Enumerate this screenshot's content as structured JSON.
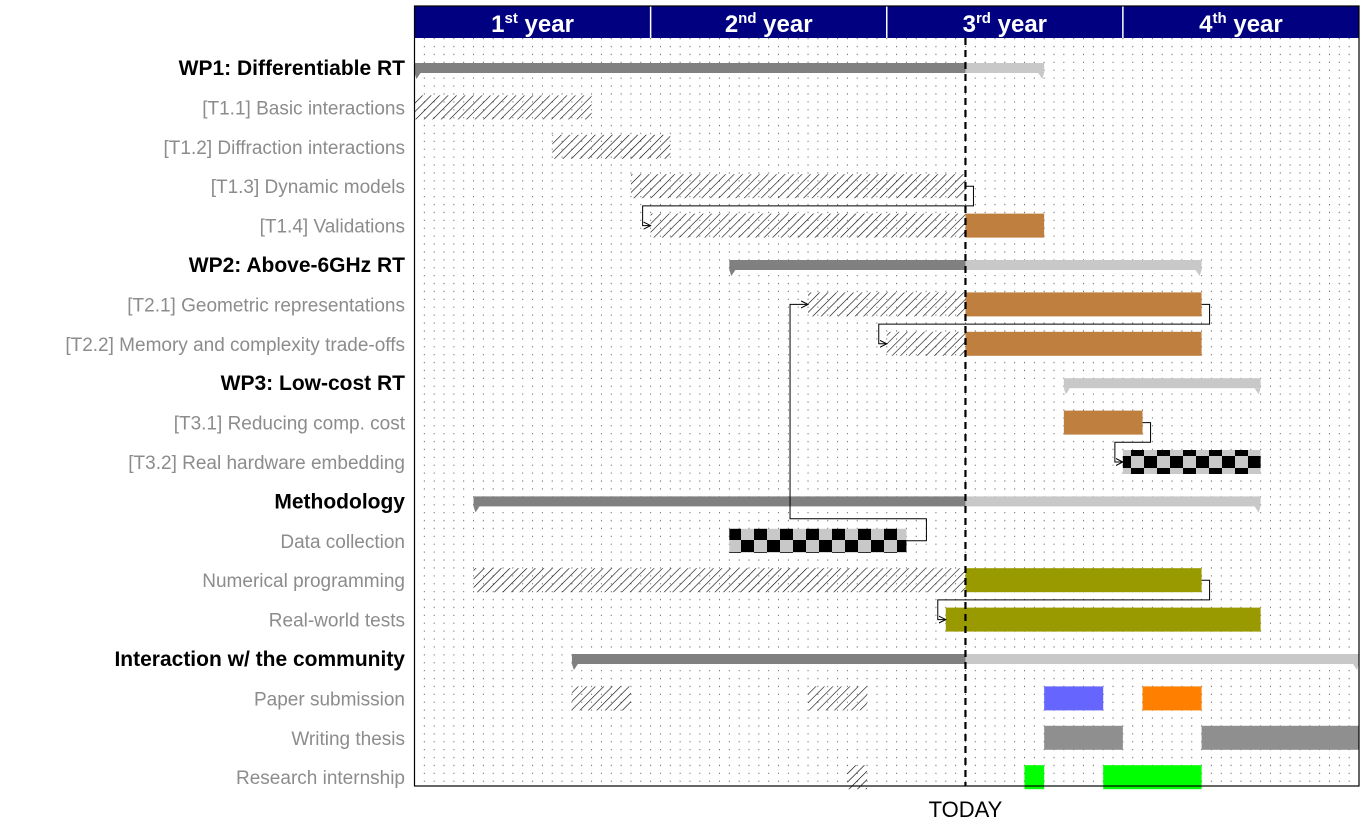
{
  "chart_data": {
    "type": "gantt",
    "time_unit": "month",
    "x_range": [
      0,
      48
    ],
    "years": [
      {
        "num": "1",
        "sup": "st",
        "word": "year",
        "start": 0,
        "end": 12
      },
      {
        "num": "2",
        "sup": "nd",
        "word": "year",
        "start": 12,
        "end": 24
      },
      {
        "num": "3",
        "sup": "rd",
        "word": "year",
        "start": 24,
        "end": 36
      },
      {
        "num": "4",
        "sup": "th",
        "word": "year",
        "start": 36,
        "end": 48
      }
    ],
    "today": {
      "label": "TODAY",
      "month": 28
    },
    "colors": {
      "header": "#000080",
      "group_done": "#808080",
      "group_planned": "#c8c8c8",
      "brown": "#bf7f3f",
      "olive": "#999900",
      "gray": "#8f8f8f",
      "blue": "#6666ff",
      "orange": "#ff7f00",
      "green": "#00ff00",
      "frame": "#000000"
    },
    "rows": [
      {
        "label": "WP1: Differentiable RT",
        "kind": "group",
        "bars": [
          {
            "start": 0,
            "end": 28,
            "style": "group_done"
          },
          {
            "start": 28,
            "end": 32,
            "style": "group_planned"
          }
        ]
      },
      {
        "label": "[T1.1] Basic interactions",
        "kind": "task",
        "bars": [
          {
            "start": 0,
            "end": 9,
            "style": "hatch"
          }
        ]
      },
      {
        "label": "[T1.2] Diffraction interactions",
        "kind": "task",
        "bars": [
          {
            "start": 7,
            "end": 13,
            "style": "hatch"
          }
        ]
      },
      {
        "label": "[T1.3] Dynamic models",
        "kind": "task",
        "bars": [
          {
            "start": 11,
            "end": 28,
            "style": "hatch"
          }
        ]
      },
      {
        "label": "[T1.4] Validations",
        "kind": "task",
        "bars": [
          {
            "start": 12,
            "end": 28,
            "style": "hatch"
          },
          {
            "start": 28,
            "end": 32,
            "style": "brown"
          }
        ]
      },
      {
        "label": "WP2: Above-6GHz RT",
        "kind": "group",
        "bars": [
          {
            "start": 16,
            "end": 28,
            "style": "group_done"
          },
          {
            "start": 28,
            "end": 40,
            "style": "group_planned"
          }
        ]
      },
      {
        "label": "[T2.1] Geometric representations",
        "kind": "task",
        "bars": [
          {
            "start": 20,
            "end": 28,
            "style": "hatch"
          },
          {
            "start": 28,
            "end": 40,
            "style": "brown"
          }
        ]
      },
      {
        "label": "[T2.2] Memory and complexity trade-offs",
        "kind": "task",
        "bars": [
          {
            "start": 24,
            "end": 28,
            "style": "hatch"
          },
          {
            "start": 28,
            "end": 40,
            "style": "brown"
          }
        ]
      },
      {
        "label": "WP3: Low-cost RT",
        "kind": "group",
        "bars": [
          {
            "start": 33,
            "end": 43,
            "style": "group_planned"
          }
        ]
      },
      {
        "label": "[T3.1] Reducing comp. cost",
        "kind": "task",
        "bars": [
          {
            "start": 33,
            "end": 37,
            "style": "brown"
          }
        ]
      },
      {
        "label": "[T3.2] Real hardware embedding",
        "kind": "task",
        "bars": [
          {
            "start": 36,
            "end": 43,
            "style": "checker"
          }
        ]
      },
      {
        "label": "Methodology",
        "kind": "group",
        "bars": [
          {
            "start": 3,
            "end": 28,
            "style": "group_done"
          },
          {
            "start": 28,
            "end": 43,
            "style": "group_planned"
          }
        ]
      },
      {
        "label": "Data collection",
        "kind": "task",
        "bars": [
          {
            "start": 16,
            "end": 25,
            "style": "checker"
          }
        ]
      },
      {
        "label": "Numerical programming",
        "kind": "task",
        "bars": [
          {
            "start": 3,
            "end": 28,
            "style": "hatch"
          },
          {
            "start": 28,
            "end": 40,
            "style": "olive"
          }
        ]
      },
      {
        "label": "Real-world tests",
        "kind": "task",
        "bars": [
          {
            "start": 27,
            "end": 43,
            "style": "olive"
          }
        ]
      },
      {
        "label": "Interaction w/ the community",
        "kind": "group",
        "bars": [
          {
            "start": 8,
            "end": 28,
            "style": "group_done"
          },
          {
            "start": 28,
            "end": 48,
            "style": "group_planned"
          }
        ]
      },
      {
        "label": "Paper submission",
        "kind": "task",
        "bars": [
          {
            "start": 8,
            "end": 11,
            "style": "hatch"
          },
          {
            "start": 20,
            "end": 23,
            "style": "hatch"
          },
          {
            "start": 32,
            "end": 35,
            "style": "blue"
          },
          {
            "start": 37,
            "end": 40,
            "style": "orange"
          }
        ]
      },
      {
        "label": "Writing thesis",
        "kind": "task",
        "bars": [
          {
            "start": 32,
            "end": 36,
            "style": "gray"
          },
          {
            "start": 40,
            "end": 48,
            "style": "gray"
          }
        ]
      },
      {
        "label": "Research internship",
        "kind": "task",
        "bars": [
          {
            "start": 22,
            "end": 23,
            "style": "hatch"
          },
          {
            "start": 31,
            "end": 32,
            "style": "green"
          },
          {
            "start": 35,
            "end": 40,
            "style": "green"
          }
        ]
      }
    ],
    "links": [
      {
        "from_row": 3,
        "from_month": 28,
        "to_row": 4,
        "to_month": 12
      },
      {
        "from_row": 6,
        "from_month": 40,
        "to_row": 7,
        "to_month": 24
      },
      {
        "from_row": 9,
        "from_month": 37,
        "to_row": 10,
        "to_month": 36
      },
      {
        "from_row": 12,
        "from_month": 25,
        "to_row": 6,
        "to_month": 20
      },
      {
        "from_row": 13,
        "from_month": 40,
        "to_row": 14,
        "to_month": 27
      }
    ]
  }
}
